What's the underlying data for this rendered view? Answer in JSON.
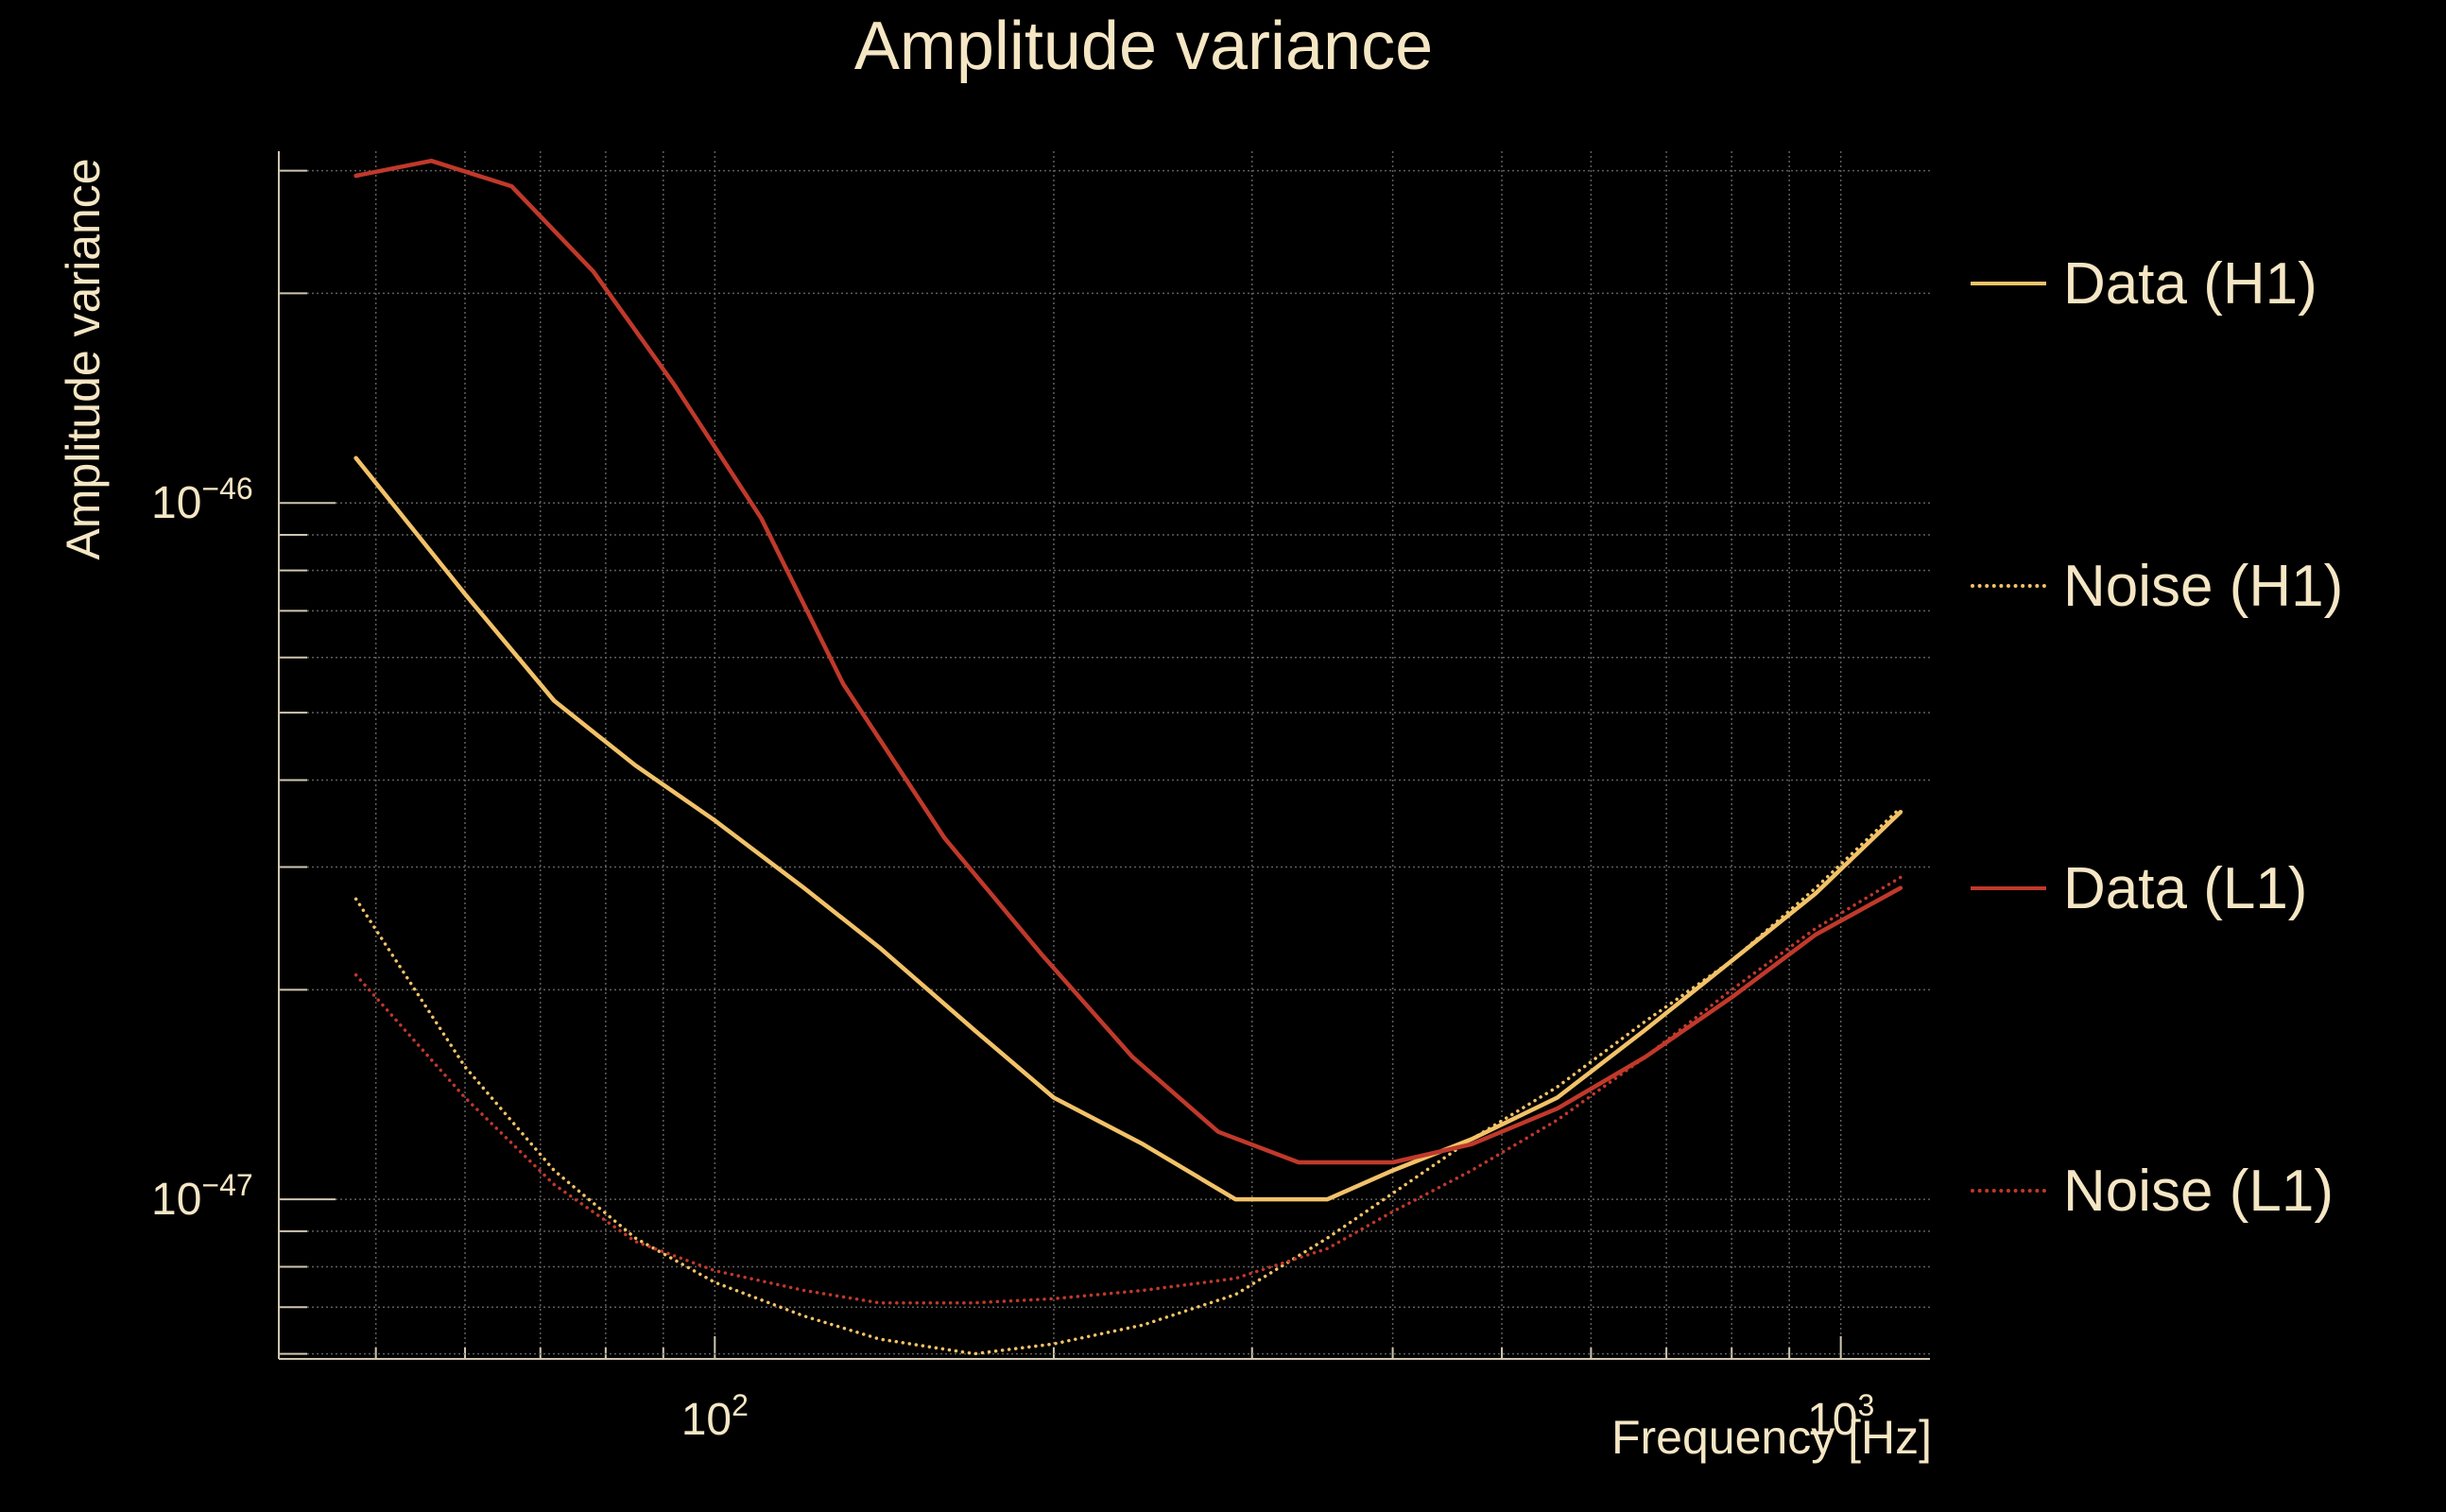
{
  "chart_data": {
    "type": "line",
    "title": "Amplitude variance",
    "xlabel": "Frequency [Hz]",
    "ylabel": "Amplitude variance",
    "xscale": "log",
    "yscale": "log",
    "xlim": [
      41,
      1200
    ],
    "ylim": [
      5.9e-48,
      3.2e-46
    ],
    "xticks": [
      {
        "value": 100,
        "base": "10",
        "exp": "2"
      },
      {
        "value": 1000,
        "base": "10",
        "exp": "3"
      }
    ],
    "yticks": [
      {
        "value": 1e-46,
        "base": "10",
        "exp": "−46"
      },
      {
        "value": 1e-47,
        "base": "10",
        "exp": "−47"
      }
    ],
    "grid": true,
    "legend_position": "right",
    "series": [
      {
        "name": "Data (H1)",
        "color": "#F2C268",
        "style": "solid",
        "x": [
          48,
          60,
          72,
          85,
          100,
          120,
          140,
          170,
          200,
          240,
          290,
          350,
          400,
          470,
          560,
          670,
          800,
          950,
          1130
        ],
        "y": [
          1.16e-46,
          7.4e-47,
          5.2e-47,
          4.2e-47,
          3.5e-47,
          2.8e-47,
          2.3e-47,
          1.75e-47,
          1.4e-47,
          1.2e-47,
          1e-47,
          1e-47,
          1.1e-47,
          1.22e-47,
          1.4e-47,
          1.75e-47,
          2.2e-47,
          2.75e-47,
          3.6e-47
        ]
      },
      {
        "name": "Noise (H1)",
        "color": "#F2C268",
        "style": "dotted",
        "x": [
          48,
          60,
          72,
          85,
          100,
          120,
          140,
          170,
          200,
          240,
          290,
          350,
          400,
          470,
          560,
          670,
          800,
          950,
          1130
        ],
        "y": [
          2.7e-47,
          1.55e-47,
          1.1e-47,
          8.8e-48,
          7.6e-48,
          6.8e-48,
          6.3e-48,
          6e-48,
          6.2e-48,
          6.6e-48,
          7.3e-48,
          8.8e-48,
          1.02e-47,
          1.22e-47,
          1.45e-47,
          1.8e-47,
          2.2e-47,
          2.8e-47,
          3.65e-47
        ]
      },
      {
        "name": "Data (L1)",
        "color": "#C0392B",
        "style": "solid",
        "x": [
          48,
          56,
          66,
          78,
          92,
          110,
          130,
          160,
          195,
          235,
          280,
          330,
          400,
          470,
          560,
          670,
          800,
          950,
          1130
        ],
        "y": [
          2.95e-46,
          3.1e-46,
          2.85e-46,
          2.15e-46,
          1.48e-46,
          9.5e-47,
          5.5e-47,
          3.3e-47,
          2.25e-47,
          1.6e-47,
          1.25e-47,
          1.13e-47,
          1.13e-47,
          1.2e-47,
          1.35e-47,
          1.6e-47,
          1.95e-47,
          2.4e-47,
          2.8e-47
        ]
      },
      {
        "name": "Noise (L1)",
        "color": "#C0392B",
        "style": "dotted",
        "x": [
          48,
          60,
          72,
          85,
          100,
          120,
          140,
          170,
          200,
          240,
          290,
          350,
          400,
          470,
          560,
          670,
          800,
          950,
          1130
        ],
        "y": [
          2.1e-47,
          1.4e-47,
          1.05e-47,
          8.7e-48,
          7.9e-48,
          7.4e-48,
          7.1e-48,
          7.1e-48,
          7.2e-48,
          7.4e-48,
          7.7e-48,
          8.5e-48,
          9.6e-48,
          1.1e-47,
          1.3e-47,
          1.6e-47,
          2e-47,
          2.45e-47,
          2.9e-47
        ]
      }
    ]
  }
}
